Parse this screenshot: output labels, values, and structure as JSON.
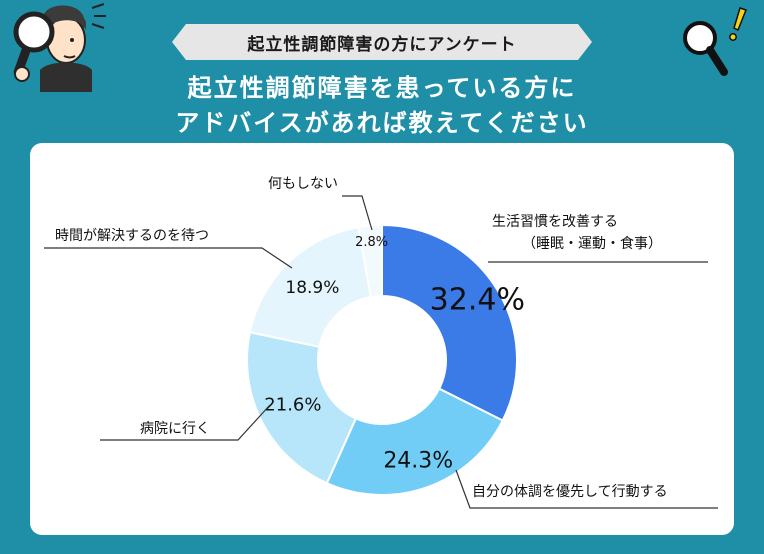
{
  "banner": {
    "text": "起立性調節障害の方にアンケート"
  },
  "heading": {
    "line1": "起立性調節障害を患っている方に",
    "line2": "アドバイスがあれば教えてください"
  },
  "colors": {
    "background": "#1e8fa6",
    "slice_1": "#3a7be8",
    "slice_2": "#72cdf6",
    "slice_3": "#b7e6fb",
    "slice_4": "#e4f5fd",
    "slice_5": "#f3fafe"
  },
  "icons": [
    "person-with-magnifier-icon",
    "magnifier-icon",
    "exclamation-icon"
  ],
  "chart_data": {
    "type": "pie",
    "donut": true,
    "categories": [
      "生活習慣を改善する（睡眠・運動・食事）",
      "自分の体調を優先して行動する",
      "病院に行く",
      "時間が解決するのを待つ",
      "何もしない"
    ],
    "values": [
      32.4,
      24.3,
      21.6,
      18.9,
      2.8
    ],
    "value_labels": [
      "32.4%",
      "24.3%",
      "21.6%",
      "18.9%",
      "2.8%"
    ],
    "category_labels": [
      {
        "line1": "生活習慣を改善する",
        "line2": "（睡眠・運動・食事）"
      },
      {
        "line1": "自分の体調を優先して行動する",
        "line2": ""
      },
      {
        "line1": "病院に行く",
        "line2": ""
      },
      {
        "line1": "時間が解決するのを待つ",
        "line2": ""
      },
      {
        "line1": "何もしない",
        "line2": ""
      }
    ]
  }
}
